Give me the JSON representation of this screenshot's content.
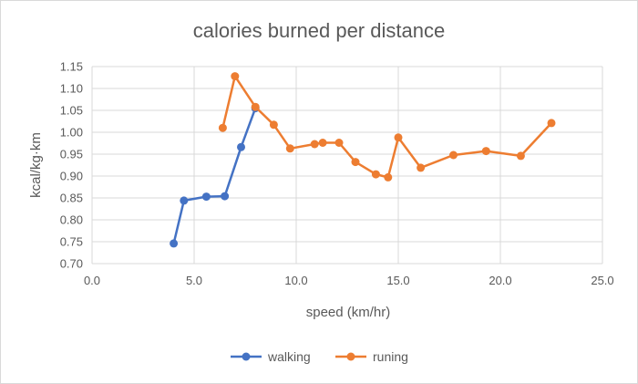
{
  "chart_data": {
    "type": "scatter",
    "title": "calories burned per distance",
    "xlabel": "speed (km/hr)",
    "ylabel": "kcal/kg·km",
    "xlim": [
      0,
      25
    ],
    "ylim": [
      0.7,
      1.15
    ],
    "xticks": [
      "0.0",
      "5.0",
      "10.0",
      "15.0",
      "20.0",
      "25.0"
    ],
    "yticks": [
      "0.70",
      "0.75",
      "0.80",
      "0.85",
      "0.90",
      "0.95",
      "1.00",
      "1.05",
      "1.10",
      "1.15"
    ],
    "grid": true,
    "legend_position": "bottom",
    "series": [
      {
        "name": "walking",
        "color": "#4472c4",
        "points": [
          [
            4.0,
            0.746
          ],
          [
            4.5,
            0.844
          ],
          [
            5.6,
            0.853
          ],
          [
            6.5,
            0.854
          ],
          [
            7.3,
            0.966
          ],
          [
            8.0,
            1.055
          ]
        ]
      },
      {
        "name": "runing",
        "color": "#ed7d31",
        "points": [
          [
            6.4,
            1.01
          ],
          [
            7.0,
            1.128
          ],
          [
            8.0,
            1.058
          ],
          [
            8.9,
            1.017
          ],
          [
            9.7,
            0.963
          ],
          [
            10.9,
            0.973
          ],
          [
            11.3,
            0.976
          ],
          [
            12.1,
            0.976
          ],
          [
            12.9,
            0.932
          ],
          [
            13.9,
            0.904
          ],
          [
            14.5,
            0.897
          ],
          [
            15.0,
            0.988
          ],
          [
            16.1,
            0.919
          ],
          [
            17.7,
            0.948
          ],
          [
            19.3,
            0.957
          ],
          [
            21.0,
            0.946
          ],
          [
            22.5,
            1.021
          ]
        ]
      }
    ]
  }
}
